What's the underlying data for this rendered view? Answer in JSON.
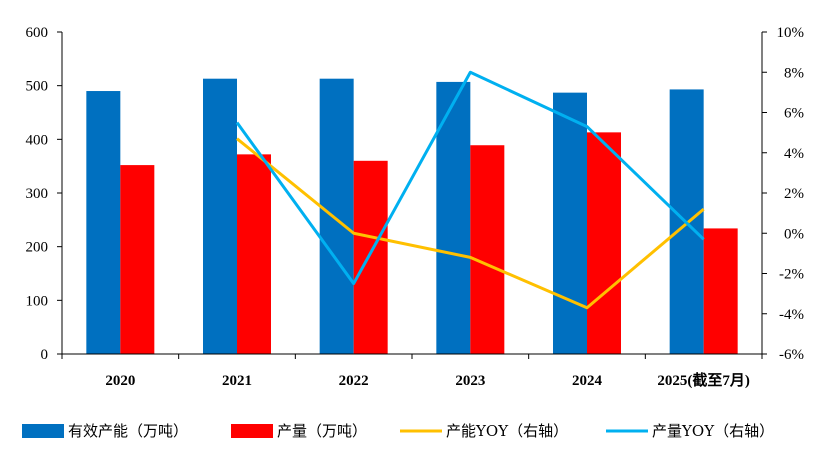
{
  "chart_data": {
    "type": "bar",
    "categories": [
      "2020",
      "2021",
      "2022",
      "2023",
      "2024",
      "2025(截至7月)"
    ],
    "series": [
      {
        "name": "有效产能（万吨）",
        "kind": "bar",
        "axis": "left",
        "color": "#0070C0",
        "values": [
          490,
          513,
          513,
          507,
          487,
          493
        ]
      },
      {
        "name": "产量（万吨）",
        "kind": "bar",
        "axis": "left",
        "color": "#FF0000",
        "values": [
          352,
          372,
          360,
          389,
          413,
          234
        ]
      },
      {
        "name": "产能YOY（右轴）",
        "kind": "line",
        "axis": "right",
        "color": "#FFC000",
        "values": [
          null,
          4.7,
          0.0,
          -1.2,
          -3.7,
          1.2
        ]
      },
      {
        "name": "产量YOY（右轴）",
        "kind": "line",
        "axis": "right",
        "color": "#00B0F0",
        "values": [
          null,
          5.5,
          -2.5,
          8.0,
          5.3,
          -0.3
        ]
      }
    ],
    "ylim": [
      0,
      600
    ],
    "yticks": [
      "0",
      "100",
      "200",
      "300",
      "400",
      "500",
      "600"
    ],
    "y2lim": [
      -6,
      10
    ],
    "y2ticks": [
      "-6%",
      "-4%",
      "-2%",
      "0%",
      "2%",
      "4%",
      "6%",
      "8%",
      "10%"
    ],
    "legend_position": "bottom",
    "grid": false
  }
}
